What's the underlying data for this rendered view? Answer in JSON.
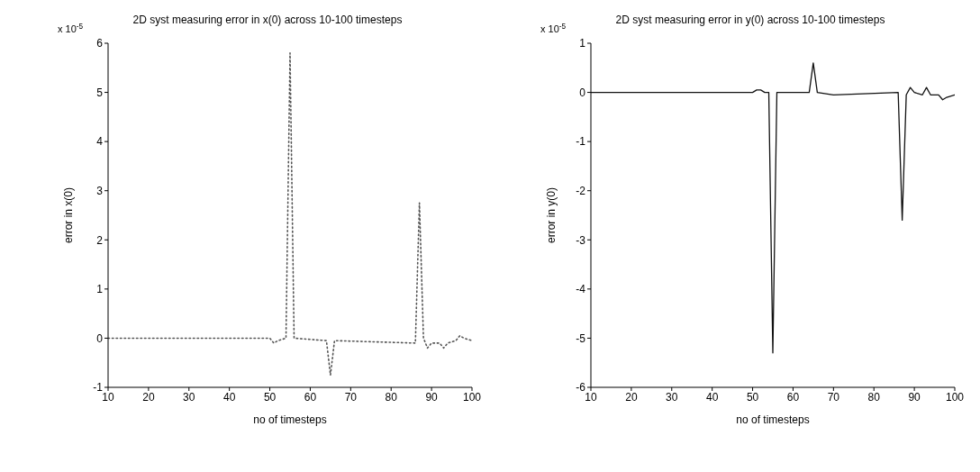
{
  "chart_data": [
    {
      "type": "line",
      "title": "2D syst measuring error in x(0) across 10-100 timesteps",
      "xlabel": "no of timesteps",
      "ylabel": "error in x(0)",
      "annotations": [
        "x 10$^{-5}$"
      ],
      "xlim": [
        10,
        100
      ],
      "xticks": [
        10,
        20,
        30,
        40,
        50,
        60,
        70,
        80,
        90,
        100
      ],
      "ylim": [
        -1,
        6
      ],
      "yticks": [
        -1,
        0,
        1,
        2,
        3,
        4,
        5,
        6
      ],
      "marker": "none",
      "line_style": "dotted",
      "series": [
        {
          "color": "#555555",
          "x": [
            10,
            50,
            51,
            52,
            54,
            55,
            56,
            64,
            65,
            66,
            86,
            87,
            88,
            89,
            90,
            92,
            93,
            94,
            96,
            97,
            98,
            100
          ],
          "values": [
            0,
            0,
            -0.1,
            -0.05,
            0,
            5.8,
            0,
            -0.05,
            -0.75,
            -0.05,
            -0.1,
            2.75,
            0,
            -0.2,
            -0.1,
            -0.1,
            -0.2,
            -0.1,
            -0.05,
            0.05,
            0,
            -0.05
          ]
        }
      ]
    },
    {
      "type": "line",
      "title": "2D syst measuring error in y(0) across 10-100 timesteps",
      "xlabel": "no of timesteps",
      "ylabel": "error in y(0)",
      "annotations": [
        "x 10$^{-5}$"
      ],
      "xlim": [
        10,
        100
      ],
      "xticks": [
        10,
        20,
        30,
        40,
        50,
        60,
        70,
        80,
        90,
        100
      ],
      "ylim": [
        -6,
        1
      ],
      "yticks": [
        -6,
        -5,
        -4,
        -3,
        -2,
        -1,
        0,
        1
      ],
      "marker": "none",
      "line_style": "solid",
      "series": [
        {
          "color": "#111111",
          "x": [
            10,
            50,
            51,
            52,
            53,
            54,
            55,
            56,
            64,
            65,
            66,
            70,
            86,
            87,
            88,
            89,
            90,
            92,
            93,
            94,
            96,
            97,
            98,
            100
          ],
          "values": [
            0,
            0,
            0.05,
            0.05,
            0,
            0,
            -5.3,
            0,
            0,
            0.6,
            0,
            -0.05,
            0,
            -2.6,
            -0.05,
            0.1,
            0,
            -0.05,
            0.1,
            -0.05,
            -0.05,
            -0.15,
            -0.1,
            -0.05
          ]
        }
      ]
    }
  ]
}
